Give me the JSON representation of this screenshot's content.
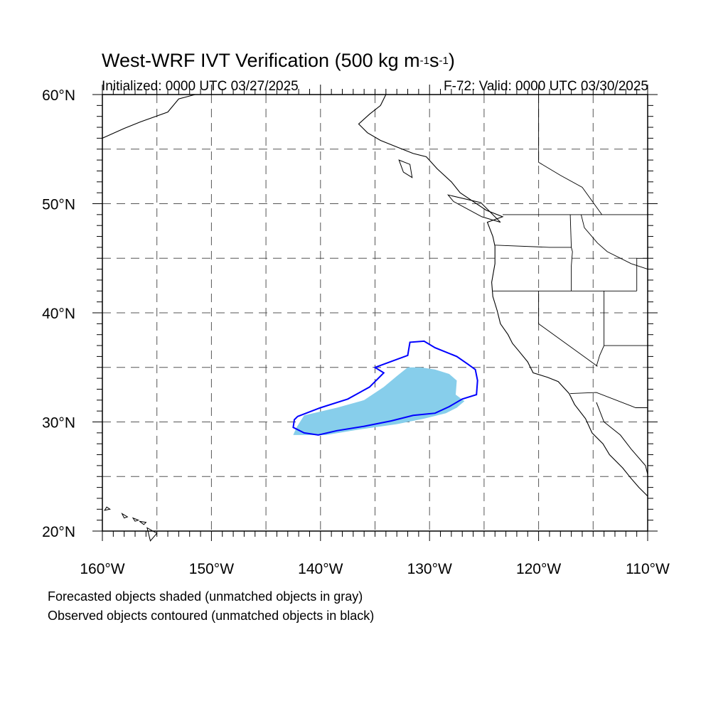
{
  "title": {
    "main": "West-WRF IVT Verification (500 kg m",
    "sup1": "-1",
    "mid": "s",
    "sup2": "-1",
    "close": ")"
  },
  "initialized": "Initialized: 0000 UTC 03/27/2025",
  "valid": "F-72: Valid: 0000 UTC 03/30/2025",
  "notes": [
    "Forecasted objects shaded (unmatched objects in gray)",
    "Observed objects contoured (unmatched objects in black)"
  ],
  "axes": {
    "lon_range": [
      -160,
      -110
    ],
    "lat_range": [
      20,
      60
    ],
    "x_ticks": [
      {
        "value": -160,
        "label": "160°W"
      },
      {
        "value": -150,
        "label": "150°W"
      },
      {
        "value": -140,
        "label": "140°W"
      },
      {
        "value": -130,
        "label": "130°W"
      },
      {
        "value": -120,
        "label": "120°W"
      },
      {
        "value": -110,
        "label": "110°W"
      }
    ],
    "y_ticks": [
      {
        "value": 60,
        "label": "60°N"
      },
      {
        "value": 50,
        "label": "50°N"
      },
      {
        "value": 40,
        "label": "40°N"
      },
      {
        "value": 30,
        "label": "30°N"
      },
      {
        "value": 20,
        "label": "20°N"
      }
    ],
    "grid_lon_step": 5,
    "grid_lat_step": 5,
    "gridlines": "dashed"
  },
  "colors": {
    "forecast_fill": "#87ceeb",
    "observed_contour": "#0000ff",
    "coastline": "#000000",
    "grid": "#555555"
  },
  "forecast_object": {
    "name": "forecast-object",
    "polygon": [
      [
        -142.2,
        29.5
      ],
      [
        -141.5,
        30.6
      ],
      [
        -138.5,
        31.3
      ],
      [
        -136.0,
        32.0
      ],
      [
        -134.2,
        33.2
      ],
      [
        -133.0,
        34.2
      ],
      [
        -132.0,
        35.0
      ],
      [
        -130.8,
        35.0
      ],
      [
        -129.5,
        34.8
      ],
      [
        -128.2,
        34.4
      ],
      [
        -127.5,
        33.8
      ],
      [
        -127.6,
        32.5
      ],
      [
        -126.8,
        31.9
      ],
      [
        -127.5,
        31.3
      ],
      [
        -128.5,
        30.8
      ],
      [
        -130.5,
        30.3
      ],
      [
        -133.0,
        29.8
      ],
      [
        -136.5,
        29.3
      ],
      [
        -139.5,
        28.8
      ],
      [
        -142.5,
        28.8
      ]
    ]
  },
  "observed_object": {
    "name": "observed-object",
    "polygon": [
      [
        -142.1,
        30.5
      ],
      [
        -140.0,
        31.3
      ],
      [
        -137.5,
        32.1
      ],
      [
        -135.5,
        33.2
      ],
      [
        -134.2,
        34.5
      ],
      [
        -135.0,
        35.0
      ],
      [
        -132.0,
        36.1
      ],
      [
        -131.8,
        37.3
      ],
      [
        -130.5,
        37.4
      ],
      [
        -129.5,
        36.8
      ],
      [
        -127.5,
        36.0
      ],
      [
        -126.5,
        35.3
      ],
      [
        -125.8,
        34.8
      ],
      [
        -125.6,
        33.8
      ],
      [
        -125.7,
        32.5
      ],
      [
        -127.0,
        32.1
      ],
      [
        -128.2,
        31.4
      ],
      [
        -129.5,
        30.8
      ],
      [
        -131.5,
        30.6
      ],
      [
        -133.5,
        30.1
      ],
      [
        -136.0,
        29.6
      ],
      [
        -138.5,
        29.2
      ],
      [
        -140.2,
        28.8
      ],
      [
        -141.5,
        29.0
      ],
      [
        -142.5,
        29.5
      ],
      [
        -142.4,
        30.2
      ]
    ]
  },
  "geography": {
    "coast": [
      [
        -134.0,
        60.0
      ],
      [
        -134.5,
        59.0
      ],
      [
        -135.5,
        58.2
      ],
      [
        -136.5,
        57.3
      ],
      [
        -135.7,
        56.5
      ],
      [
        -134.5,
        55.8
      ],
      [
        -133.0,
        55.2
      ],
      [
        -131.5,
        54.6
      ],
      [
        -130.3,
        54.3
      ],
      [
        -129.3,
        53.2
      ],
      [
        -128.0,
        52.0
      ],
      [
        -127.2,
        51.0
      ],
      [
        -126.0,
        50.2
      ],
      [
        -124.8,
        49.4
      ],
      [
        -123.3,
        48.8
      ],
      [
        -124.7,
        48.3
      ],
      [
        -124.2,
        47.0
      ],
      [
        -124.0,
        46.1
      ],
      [
        -124.0,
        44.5
      ],
      [
        -124.3,
        42.8
      ],
      [
        -124.2,
        41.5
      ],
      [
        -123.8,
        40.2
      ],
      [
        -123.5,
        39.0
      ],
      [
        -122.8,
        38.0
      ],
      [
        -122.4,
        37.2
      ],
      [
        -121.9,
        36.6
      ],
      [
        -121.0,
        35.5
      ],
      [
        -120.5,
        34.5
      ],
      [
        -119.2,
        34.1
      ],
      [
        -118.2,
        33.7
      ],
      [
        -117.2,
        32.6
      ],
      [
        -116.7,
        31.6
      ],
      [
        -115.7,
        30.3
      ],
      [
        -115.1,
        29.0
      ],
      [
        -114.1,
        28.0
      ],
      [
        -113.5,
        27.0
      ],
      [
        -112.3,
        25.8
      ],
      [
        -111.5,
        24.8
      ],
      [
        -110.8,
        24.0
      ],
      [
        -110.0,
        23.2
      ]
    ],
    "alaska": [
      [
        -160.0,
        56.0
      ],
      [
        -158.0,
        56.9
      ],
      [
        -156.5,
        57.5
      ],
      [
        -154.0,
        58.4
      ],
      [
        -153.0,
        59.6
      ],
      [
        -151.5,
        60.0
      ]
    ],
    "gulf_of_california": [
      [
        -114.7,
        31.8
      ],
      [
        -114.0,
        30.0
      ],
      [
        -112.5,
        28.8
      ],
      [
        -111.5,
        27.5
      ],
      [
        -110.2,
        26.0
      ],
      [
        -110.0,
        25.2
      ]
    ],
    "hawaii": [
      [
        [
          -159.6,
          22.2
        ],
        [
          -159.3,
          22.0
        ],
        [
          -159.8,
          21.9
        ]
      ],
      [
        [
          -158.2,
          21.6
        ],
        [
          -157.7,
          21.3
        ],
        [
          -158.0,
          21.2
        ]
      ],
      [
        [
          -157.2,
          21.2
        ],
        [
          -156.7,
          21.0
        ],
        [
          -157.0,
          20.9
        ]
      ],
      [
        [
          -156.6,
          20.9
        ],
        [
          -156.0,
          20.8
        ],
        [
          -156.2,
          20.6
        ]
      ],
      [
        [
          -155.9,
          20.3
        ],
        [
          -155.0,
          19.8
        ],
        [
          -155.6,
          19.1
        ]
      ]
    ],
    "islands_bc": [
      [
        [
          -132.8,
          54.0
        ],
        [
          -131.8,
          53.6
        ],
        [
          -131.6,
          52.4
        ],
        [
          -132.4,
          52.9
        ]
      ],
      [
        [
          -128.3,
          50.8
        ],
        [
          -125.3,
          50.1
        ],
        [
          -123.5,
          48.3
        ],
        [
          -125.2,
          48.8
        ],
        [
          -127.8,
          50.2
        ]
      ]
    ],
    "borders": [
      [
        [
          -123.3,
          49.0
        ],
        [
          -110.0,
          49.0
        ]
      ],
      [
        [
          -124.2,
          42.0
        ],
        [
          -111.0,
          42.0
        ]
      ],
      [
        [
          -120.0,
          42.0
        ],
        [
          -120.0,
          39.0
        ],
        [
          -114.6,
          35.1
        ]
      ],
      [
        [
          -117.1,
          49.0
        ],
        [
          -117.0,
          46.0
        ],
        [
          -116.9,
          45.6
        ],
        [
          -117.0,
          44.3
        ],
        [
          -117.0,
          42.0
        ]
      ],
      [
        [
          -124.0,
          46.2
        ],
        [
          -119.0,
          46.0
        ],
        [
          -117.0,
          46.0
        ]
      ],
      [
        [
          -114.0,
          42.0
        ],
        [
          -114.0,
          37.0
        ],
        [
          -114.4,
          36.1
        ],
        [
          -114.7,
          35.1
        ]
      ],
      [
        [
          -114.0,
          37.0
        ],
        [
          -110.0,
          37.0
        ]
      ],
      [
        [
          -111.0,
          42.0
        ],
        [
          -111.0,
          45.0
        ],
        [
          -110.0,
          45.0
        ]
      ],
      [
        [
          -117.1,
          32.6
        ],
        [
          -114.7,
          32.7
        ],
        [
          -111.1,
          31.3
        ],
        [
          -110.0,
          31.3
        ]
      ],
      [
        [
          -116.1,
          49.0
        ],
        [
          -115.8,
          47.8
        ],
        [
          -114.6,
          46.4
        ],
        [
          -113.7,
          45.6
        ],
        [
          -111.5,
          44.5
        ],
        [
          -110.0,
          44.0
        ]
      ],
      [
        [
          -120.0,
          60.0
        ],
        [
          -120.0,
          53.8
        ],
        [
          -118.0,
          52.6
        ],
        [
          -116.0,
          51.5
        ],
        [
          -114.2,
          49.0
        ]
      ]
    ]
  }
}
